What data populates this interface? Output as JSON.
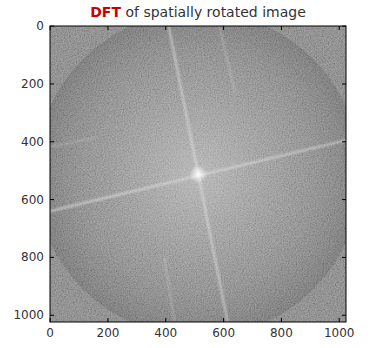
{
  "chart_data": {
    "type": "image",
    "title": "DFT of spatially rotated image",
    "xlim": [
      -0.5,
      1023.5
    ],
    "ylim": [
      1023.5,
      -0.5
    ],
    "xticks": [
      0,
      200,
      400,
      600,
      800,
      1000
    ],
    "yticks": [
      0,
      200,
      400,
      600,
      800,
      1000
    ],
    "grid": false,
    "peak": {
      "x": 512,
      "y": 512
    },
    "streaks": [
      {
        "x": [
          410,
          614
        ],
        "y": [
          0,
          1023
        ]
      },
      {
        "x": [
          0,
          1023
        ],
        "y": [
          640,
          395
        ]
      },
      {
        "x": [
          585,
          640
        ],
        "y": [
          0,
          230
        ]
      },
      {
        "x": [
          395,
          430
        ],
        "y": [
          800,
          1023
        ]
      },
      {
        "x": [
          0,
          160
        ],
        "y": [
          418,
          385
        ]
      }
    ]
  }
}
